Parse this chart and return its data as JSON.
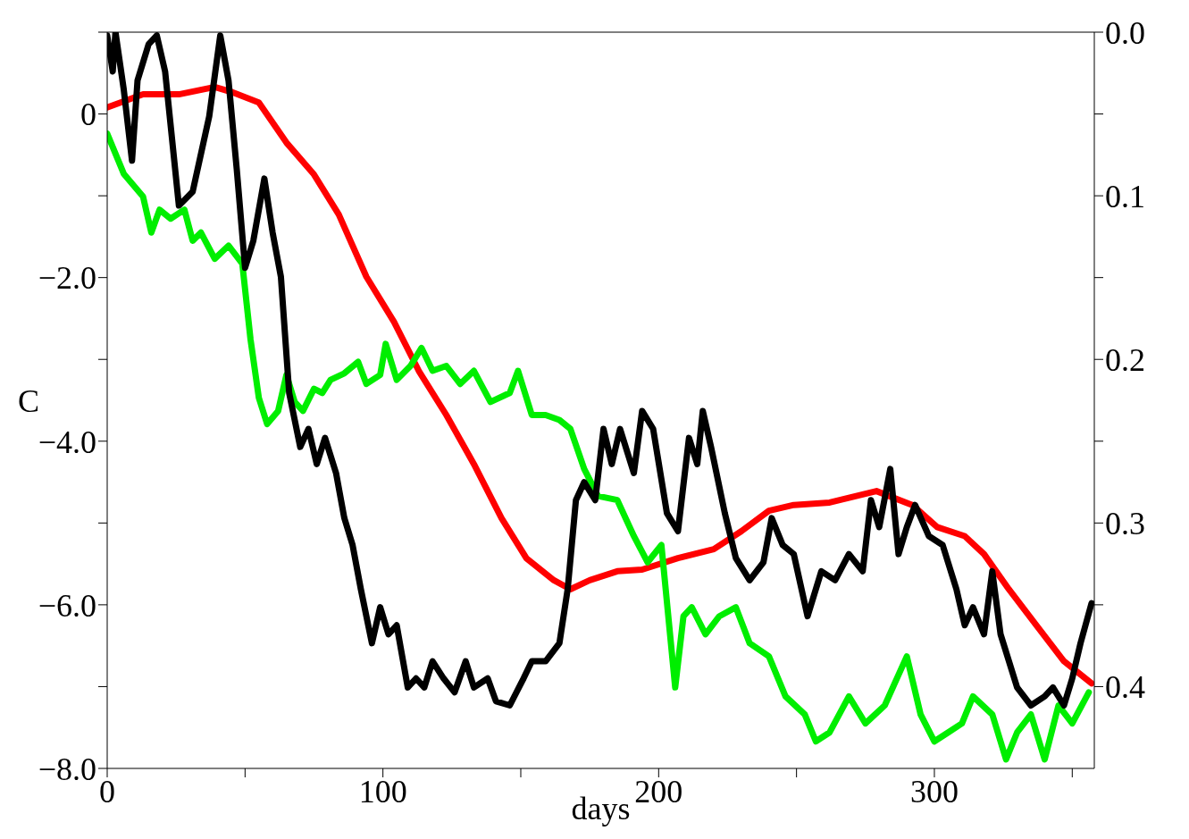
{
  "chart_data": {
    "type": "line",
    "xlabel": "days",
    "ylabel": "C",
    "xlim": [
      0,
      358
    ],
    "xticks": [
      0,
      {
        "value": 50,
        "label": null
      },
      100,
      {
        "value": 150,
        "label": null
      },
      200,
      {
        "value": 250,
        "label": null
      },
      300,
      {
        "value": 350,
        "label": null
      }
    ],
    "ylim": [
      -8,
      1
    ],
    "yticks": [
      {
        "value": 1,
        "label": null
      },
      0,
      {
        "value": -1,
        "label": null
      },
      {
        "value": -2,
        "label": "−2.0"
      },
      {
        "value": -3,
        "label": null
      },
      {
        "value": -4,
        "label": "−4.0"
      },
      {
        "value": -5,
        "label": null
      },
      {
        "value": -6,
        "label": "−6.0"
      },
      {
        "value": -7,
        "label": null
      },
      {
        "value": -8,
        "label": "−8.0"
      }
    ],
    "y2lim": [
      0.45,
      0
    ],
    "y2ticks": [
      {
        "value": 0,
        "label": "0.0"
      },
      {
        "value": 0.05,
        "label": null
      },
      0.1,
      {
        "value": 0.15,
        "label": null
      },
      0.2,
      {
        "value": 0.25,
        "label": null
      },
      0.3,
      {
        "value": 0.35,
        "label": null
      },
      0.4
    ],
    "grid": false,
    "legend": false,
    "marker": "none",
    "line_style": "solid",
    "series": [
      {
        "color": "#ff0000",
        "x": [
          0,
          13,
          26,
          39,
          45,
          55,
          65,
          75,
          84,
          94,
          104,
          113,
          123,
          133,
          143,
          152,
          162,
          168,
          175,
          185,
          194,
          207,
          220,
          230,
          240,
          249,
          262,
          279,
          292,
          301,
          311,
          318,
          327,
          337,
          347,
          357
        ],
        "values": [
          0.08,
          0.24,
          0.24,
          0.33,
          0.27,
          0.14,
          -0.35,
          -0.74,
          -1.23,
          -1.99,
          -2.54,
          -3.14,
          -3.68,
          -4.28,
          -4.94,
          -5.43,
          -5.7,
          -5.81,
          -5.7,
          -5.59,
          -5.57,
          -5.43,
          -5.32,
          -5.1,
          -4.85,
          -4.78,
          -4.75,
          -4.61,
          -4.78,
          -5.05,
          -5.16,
          -5.38,
          -5.81,
          -6.25,
          -6.69,
          -6.96
        ]
      },
      {
        "color": "#00ee00",
        "x": [
          0,
          6,
          13,
          16,
          19,
          23,
          28,
          31,
          34,
          39,
          44,
          49,
          52,
          55,
          58,
          62,
          65,
          68,
          71,
          75,
          78,
          81,
          86,
          91,
          94,
          99,
          101,
          105,
          110,
          114,
          118,
          123,
          128,
          133,
          139,
          146,
          149,
          154,
          159,
          164,
          168,
          173,
          178,
          185,
          191,
          196,
          201,
          206,
          209,
          212,
          217,
          222,
          228,
          233,
          240,
          246,
          253,
          257,
          262,
          269,
          275,
          282,
          290,
          295,
          300,
          305,
          310,
          314,
          321,
          326,
          330,
          335,
          340,
          345,
          350,
          356
        ],
        "values": [
          -0.24,
          -0.73,
          -1.01,
          -1.45,
          -1.17,
          -1.28,
          -1.17,
          -1.55,
          -1.45,
          -1.77,
          -1.61,
          -1.83,
          -2.76,
          -3.47,
          -3.79,
          -3.63,
          -3.19,
          -3.52,
          -3.63,
          -3.36,
          -3.41,
          -3.25,
          -3.17,
          -3.03,
          -3.3,
          -3.19,
          -2.81,
          -3.25,
          -3.08,
          -2.86,
          -3.14,
          -3.08,
          -3.3,
          -3.14,
          -3.52,
          -3.41,
          -3.14,
          -3.68,
          -3.68,
          -3.74,
          -3.85,
          -4.34,
          -4.67,
          -4.72,
          -5.16,
          -5.48,
          -5.27,
          -7.01,
          -6.14,
          -6.03,
          -6.36,
          -6.14,
          -6.03,
          -6.47,
          -6.63,
          -7.12,
          -7.34,
          -7.67,
          -7.56,
          -7.12,
          -7.45,
          -7.23,
          -6.63,
          -7.34,
          -7.67,
          -7.56,
          -7.45,
          -7.12,
          -7.34,
          -7.89,
          -7.56,
          -7.34,
          -7.89,
          -7.23,
          -7.45,
          -7.07
        ]
      },
      {
        "color": "#000000",
        "x": [
          0,
          2,
          3,
          6,
          9,
          11,
          15,
          18,
          21,
          26,
          31,
          37,
          41,
          44,
          47,
          50,
          53,
          57,
          60,
          63,
          66,
          70,
          73,
          76,
          79,
          83,
          86,
          89,
          92,
          96,
          99,
          102,
          105,
          109,
          112,
          115,
          118,
          122,
          126,
          130,
          133,
          138,
          141,
          146,
          151,
          154,
          159,
          164,
          167,
          170,
          173,
          177,
          180,
          183,
          186,
          191,
          194,
          198,
          203,
          207,
          211,
          214,
          216,
          219,
          224,
          228,
          233,
          238,
          241,
          245,
          249,
          254,
          259,
          264,
          269,
          274,
          277,
          280,
          284,
          287,
          290,
          293,
          298,
          303,
          308,
          311,
          314,
          318,
          321,
          324,
          330,
          335,
          340,
          343,
          347,
          350,
          353,
          357
        ],
        "values": [
          0.96,
          0.52,
          1.0,
          0.3,
          -0.57,
          0.41,
          0.85,
          0.96,
          0.52,
          -1.12,
          -0.95,
          -0.03,
          0.96,
          0.41,
          -0.68,
          -1.88,
          -1.55,
          -0.79,
          -1.45,
          -1.99,
          -3.41,
          -4.07,
          -3.85,
          -4.28,
          -3.96,
          -4.39,
          -4.94,
          -5.27,
          -5.81,
          -6.47,
          -6.03,
          -6.36,
          -6.25,
          -7.01,
          -6.9,
          -7.01,
          -6.69,
          -6.9,
          -7.07,
          -6.69,
          -7.01,
          -6.9,
          -7.18,
          -7.23,
          -6.9,
          -6.69,
          -6.69,
          -6.47,
          -5.81,
          -4.72,
          -4.5,
          -4.72,
          -3.85,
          -4.28,
          -3.85,
          -4.39,
          -3.63,
          -3.85,
          -4.88,
          -5.1,
          -3.96,
          -4.28,
          -3.63,
          -4.07,
          -4.88,
          -5.43,
          -5.7,
          -5.48,
          -4.94,
          -5.27,
          -5.38,
          -6.14,
          -5.59,
          -5.7,
          -5.38,
          -5.59,
          -4.72,
          -5.05,
          -4.34,
          -5.38,
          -5.05,
          -4.78,
          -5.16,
          -5.27,
          -5.81,
          -6.25,
          -6.03,
          -6.36,
          -5.59,
          -6.36,
          -7.01,
          -7.23,
          -7.12,
          -7.01,
          -7.23,
          -6.9,
          -6.47,
          -5.98
        ]
      }
    ]
  }
}
